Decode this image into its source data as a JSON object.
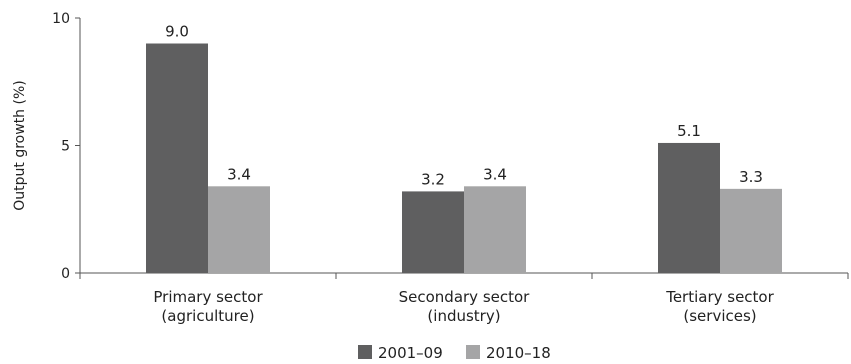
{
  "chart_data": {
    "type": "bar",
    "categories": [
      [
        "Primary sector",
        "(agriculture)"
      ],
      [
        "Secondary sector",
        "(industry)"
      ],
      [
        "Tertiary sector",
        "(services)"
      ]
    ],
    "series": [
      {
        "name": "2001–09",
        "values": [
          9.0,
          3.2,
          5.1
        ],
        "labels": [
          "9.0",
          "3.2",
          "5.1"
        ],
        "color": "#5f5f60"
      },
      {
        "name": "2010–18",
        "values": [
          3.4,
          3.4,
          3.3
        ],
        "labels": [
          "3.4",
          "3.4",
          "3.3"
        ],
        "color": "#a5a5a6"
      }
    ],
    "ylabel": "Output growth (%)",
    "ylim": [
      0,
      10
    ],
    "yticks": [
      "0",
      "5",
      "10"
    ],
    "grid": false,
    "legend": "bottom"
  }
}
